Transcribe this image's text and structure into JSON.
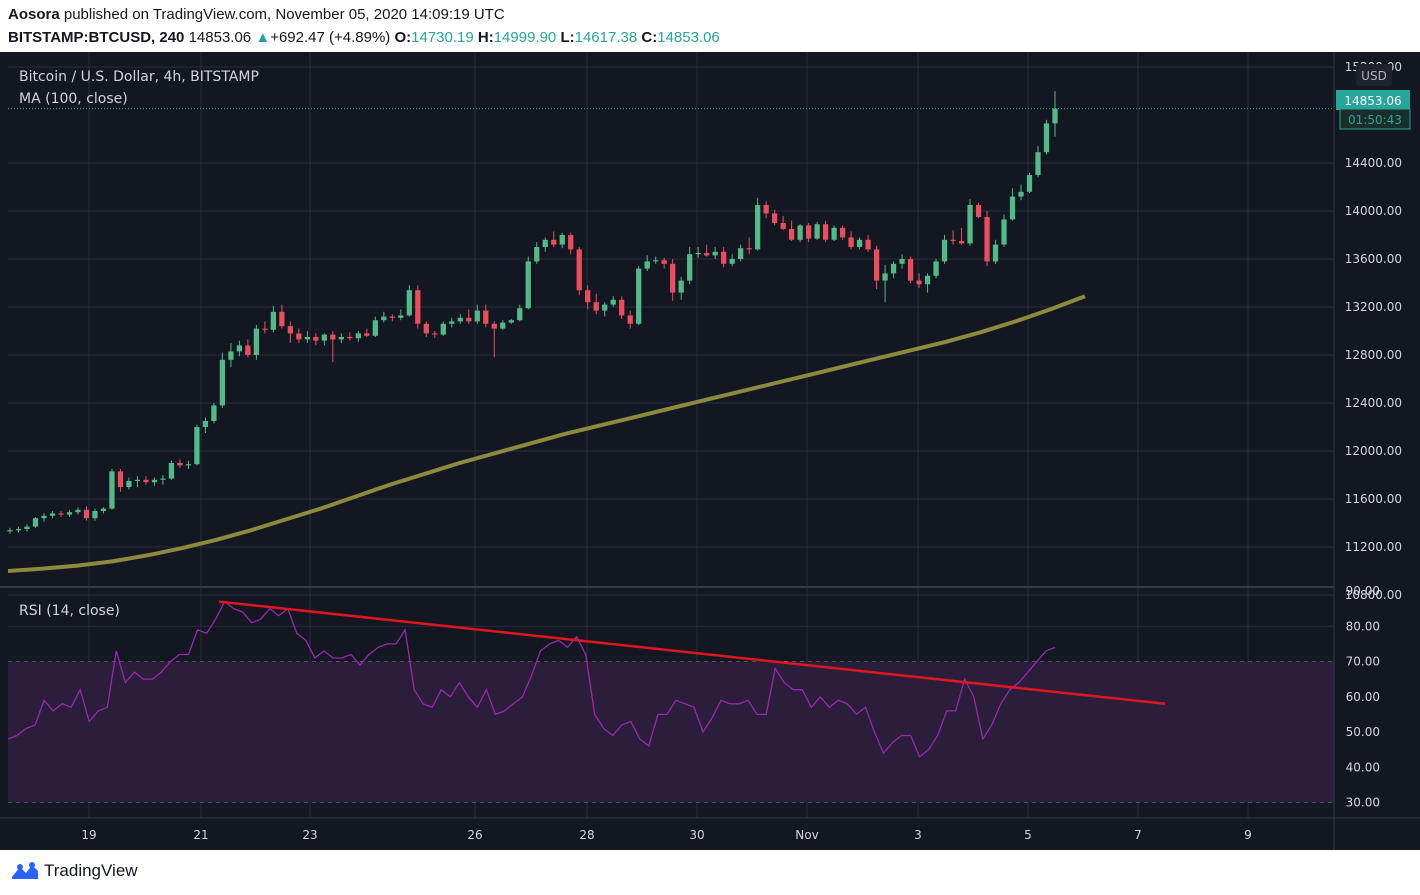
{
  "header": {
    "author": "Aosora",
    "published_text": "published on TradingView.com, November 05, 2020 14:09:19 UTC",
    "symbol": "BITSTAMP:BTCUSD, 240",
    "last": "14853.06",
    "change": "+692.47 (+4.89%)",
    "o_label": "O:",
    "o_value": "14730.19",
    "h_label": "H:",
    "h_value": "14999.90",
    "l_label": "L:",
    "l_value": "14617.38",
    "c_label": "C:",
    "c_value": "14853.06"
  },
  "pane_labels": {
    "title": "Bitcoin / U.S. Dollar, 4h, BITSTAMP",
    "ma": "MA (100, close)",
    "rsi": "RSI (14, close)"
  },
  "price_axis": {
    "currency": "USD",
    "ticks": [
      "15200.00",
      "14400.00",
      "14000.00",
      "13600.00",
      "13200.00",
      "12800.00",
      "12400.00",
      "12000.00",
      "11600.00",
      "11200.00",
      "10800.00"
    ],
    "last_price_label": "14853.06",
    "countdown_label": "01:50:43"
  },
  "rsi_axis": {
    "ticks": [
      "90.00",
      "80.00",
      "70.00",
      "60.00",
      "50.00",
      "40.00",
      "30.00"
    ]
  },
  "time_axis": {
    "ticks": [
      "19",
      "21",
      "23",
      "26",
      "28",
      "30",
      "Nov",
      "3",
      "5",
      "7",
      "9"
    ]
  },
  "footer": {
    "brand": "TradingView"
  },
  "colors": {
    "background": "#131722",
    "up": "#26a69a",
    "down": "#ef5350",
    "candle_up": "#53b987",
    "candle_down": "#eb4d5c",
    "ma": "#8c8a3c",
    "rsi_line": "#9c27b0",
    "rsi_band": "#2a1e3a",
    "trendline": "#e0161e",
    "grid": "#2a2e39",
    "axis_text": "#d1d4dc"
  },
  "chart_data": {
    "type": "candlestick",
    "title": "Bitcoin / U.S. Dollar, 4h, BITSTAMP",
    "x_ticks": [
      "19",
      "21",
      "23",
      "26",
      "28",
      "30",
      "Nov",
      "3",
      "5",
      "7",
      "9"
    ],
    "ylim": [
      10800,
      15200
    ],
    "candles": [
      [
        11330,
        11360,
        11310,
        11340
      ],
      [
        11340,
        11370,
        11320,
        11350
      ],
      [
        11350,
        11390,
        11330,
        11370
      ],
      [
        11370,
        11450,
        11360,
        11440
      ],
      [
        11440,
        11480,
        11410,
        11460
      ],
      [
        11460,
        11500,
        11440,
        11480
      ],
      [
        11480,
        11500,
        11450,
        11470
      ],
      [
        11470,
        11510,
        11450,
        11490
      ],
      [
        11490,
        11530,
        11470,
        11510
      ],
      [
        11510,
        11540,
        11420,
        11440
      ],
      [
        11440,
        11520,
        11420,
        11500
      ],
      [
        11500,
        11530,
        11480,
        11520
      ],
      [
        11520,
        11850,
        11510,
        11830
      ],
      [
        11830,
        11850,
        11660,
        11700
      ],
      [
        11700,
        11780,
        11680,
        11750
      ],
      [
        11750,
        11790,
        11700,
        11760
      ],
      [
        11760,
        11790,
        11720,
        11740
      ],
      [
        11740,
        11780,
        11710,
        11760
      ],
      [
        11760,
        11800,
        11720,
        11770
      ],
      [
        11770,
        11920,
        11760,
        11900
      ],
      [
        11900,
        11930,
        11860,
        11880
      ],
      [
        11880,
        11920,
        11850,
        11890
      ],
      [
        11890,
        12220,
        11880,
        12200
      ],
      [
        12200,
        12280,
        12150,
        12250
      ],
      [
        12250,
        12400,
        12230,
        12380
      ],
      [
        12380,
        12820,
        12360,
        12760
      ],
      [
        12760,
        12900,
        12700,
        12830
      ],
      [
        12830,
        12920,
        12790,
        12880
      ],
      [
        12880,
        12930,
        12780,
        12800
      ],
      [
        12800,
        13050,
        12760,
        13020
      ],
      [
        13020,
        13080,
        12980,
        13010
      ],
      [
        13010,
        13210,
        12990,
        13160
      ],
      [
        13160,
        13220,
        13020,
        13040
      ],
      [
        13040,
        13080,
        12900,
        12980
      ],
      [
        12980,
        13020,
        12900,
        12930
      ],
      [
        12930,
        13000,
        12900,
        12950
      ],
      [
        12950,
        12980,
        12880,
        12920
      ],
      [
        12920,
        12980,
        12880,
        12970
      ],
      [
        12970,
        13000,
        12740,
        12930
      ],
      [
        12930,
        12980,
        12900,
        12950
      ],
      [
        12950,
        12990,
        12920,
        12940
      ],
      [
        12940,
        13000,
        12910,
        12980
      ],
      [
        12980,
        13020,
        12950,
        12960
      ],
      [
        12960,
        13120,
        12950,
        13090
      ],
      [
        13090,
        13160,
        13070,
        13120
      ],
      [
        13120,
        13140,
        13080,
        13110
      ],
      [
        13110,
        13180,
        13090,
        13130
      ],
      [
        13130,
        13380,
        13120,
        13340
      ],
      [
        13340,
        13380,
        13020,
        13060
      ],
      [
        13060,
        13080,
        12950,
        12980
      ],
      [
        12980,
        13000,
        12940,
        12970
      ],
      [
        12970,
        13080,
        12960,
        13060
      ],
      [
        13060,
        13110,
        13030,
        13080
      ],
      [
        13080,
        13140,
        13060,
        13110
      ],
      [
        13110,
        13180,
        13060,
        13080
      ],
      [
        13080,
        13220,
        13060,
        13170
      ],
      [
        13170,
        13220,
        13030,
        13060
      ],
      [
        13060,
        13080,
        12780,
        13020
      ],
      [
        13020,
        13090,
        13010,
        13070
      ],
      [
        13070,
        13100,
        13060,
        13090
      ],
      [
        13090,
        13220,
        13080,
        13190
      ],
      [
        13190,
        13620,
        13180,
        13580
      ],
      [
        13580,
        13740,
        13560,
        13700
      ],
      [
        13700,
        13780,
        13660,
        13760
      ],
      [
        13760,
        13830,
        13700,
        13720
      ],
      [
        13720,
        13820,
        13690,
        13800
      ],
      [
        13800,
        13820,
        13640,
        13680
      ],
      [
        13680,
        13700,
        13300,
        13340
      ],
      [
        13340,
        13380,
        13180,
        13240
      ],
      [
        13240,
        13310,
        13140,
        13170
      ],
      [
        13170,
        13240,
        13120,
        13220
      ],
      [
        13220,
        13290,
        13200,
        13260
      ],
      [
        13260,
        13290,
        13100,
        13130
      ],
      [
        13130,
        13170,
        13020,
        13060
      ],
      [
        13060,
        13540,
        13050,
        13520
      ],
      [
        13520,
        13630,
        13500,
        13580
      ],
      [
        13580,
        13620,
        13560,
        13590
      ],
      [
        13590,
        13610,
        13520,
        13560
      ],
      [
        13560,
        13600,
        13250,
        13320
      ],
      [
        13320,
        13450,
        13260,
        13420
      ],
      [
        13420,
        13700,
        13390,
        13640
      ],
      [
        13640,
        13700,
        13610,
        13650
      ],
      [
        13650,
        13720,
        13620,
        13630
      ],
      [
        13630,
        13700,
        13600,
        13660
      ],
      [
        13660,
        13700,
        13530,
        13560
      ],
      [
        13560,
        13640,
        13540,
        13600
      ],
      [
        13600,
        13720,
        13580,
        13690
      ],
      [
        13690,
        13780,
        13640,
        13680
      ],
      [
        13680,
        14110,
        13670,
        14050
      ],
      [
        14050,
        14080,
        13940,
        13980
      ],
      [
        13980,
        14010,
        13880,
        13900
      ],
      [
        13900,
        13960,
        13840,
        13850
      ],
      [
        13850,
        13920,
        13750,
        13760
      ],
      [
        13760,
        13890,
        13740,
        13880
      ],
      [
        13880,
        13900,
        13740,
        13770
      ],
      [
        13770,
        13910,
        13760,
        13890
      ],
      [
        13890,
        13920,
        13740,
        13760
      ],
      [
        13760,
        13880,
        13750,
        13860
      ],
      [
        13860,
        13880,
        13760,
        13780
      ],
      [
        13780,
        13830,
        13680,
        13700
      ],
      [
        13700,
        13780,
        13680,
        13760
      ],
      [
        13760,
        13800,
        13660,
        13680
      ],
      [
        13680,
        13710,
        13350,
        13420
      ],
      [
        13420,
        13550,
        13240,
        13480
      ],
      [
        13480,
        13580,
        13440,
        13560
      ],
      [
        13560,
        13640,
        13520,
        13600
      ],
      [
        13600,
        13620,
        13400,
        13420
      ],
      [
        13420,
        13480,
        13360,
        13390
      ],
      [
        13390,
        13480,
        13320,
        13460
      ],
      [
        13460,
        13600,
        13440,
        13580
      ],
      [
        13580,
        13800,
        13560,
        13760
      ],
      [
        13760,
        13840,
        13720,
        13750
      ],
      [
        13750,
        13860,
        13720,
        13730
      ],
      [
        13730,
        14100,
        13710,
        14050
      ],
      [
        14050,
        14070,
        13940,
        13950
      ],
      [
        13950,
        14000,
        13540,
        13580
      ],
      [
        13580,
        13760,
        13560,
        13720
      ],
      [
        13720,
        13970,
        13700,
        13930
      ],
      [
        13930,
        14190,
        13920,
        14120
      ],
      [
        14120,
        14220,
        14090,
        14160
      ],
      [
        14160,
        14320,
        14150,
        14300
      ],
      [
        14300,
        14540,
        14280,
        14490
      ],
      [
        14490,
        14760,
        14470,
        14730
      ],
      [
        14730,
        15000,
        14620,
        14853
      ]
    ],
    "ma": [
      11000,
      11020,
      11045,
      11080,
      11130,
      11190,
      11260,
      11340,
      11430,
      11520,
      11620,
      11720,
      11810,
      11900,
      11980,
      12060,
      12140,
      12210,
      12280,
      12350,
      12420,
      12490,
      12560,
      12630,
      12700,
      12770,
      12840,
      12910,
      12990,
      13080,
      13180,
      13290
    ],
    "rsi": [
      48,
      49,
      51,
      52,
      59,
      56,
      58,
      57,
      62,
      53,
      56,
      57,
      73,
      64,
      67,
      65,
      65,
      67,
      70,
      72,
      72,
      79,
      78,
      82,
      87,
      85,
      84,
      81,
      82,
      85,
      83,
      85,
      78,
      76,
      71,
      73,
      71,
      71,
      72,
      69,
      72,
      74,
      75,
      75,
      79,
      62,
      58,
      57,
      62,
      60,
      64,
      60,
      57,
      62,
      55,
      56,
      58,
      60,
      66,
      73,
      75,
      76,
      74,
      77,
      72,
      55,
      51,
      49,
      52,
      53,
      48,
      46,
      55,
      55,
      59,
      58,
      57,
      50,
      54,
      59,
      58,
      58,
      59,
      55,
      55,
      68,
      64,
      62,
      62,
      57,
      60,
      57,
      59,
      58,
      55,
      57,
      50,
      44,
      47,
      49,
      49,
      43,
      45,
      49,
      56,
      56,
      65,
      60,
      48,
      52,
      58,
      62,
      64,
      67,
      70,
      73,
      74
    ],
    "rsi_levels": {
      "upper": 70,
      "lower": 30
    },
    "rsi_ylim": [
      25,
      90
    ],
    "trendline": {
      "from": {
        "date": "Oct 21",
        "rsi": 87
      },
      "to": {
        "date": "Nov 7",
        "rsi": 58
      }
    }
  }
}
